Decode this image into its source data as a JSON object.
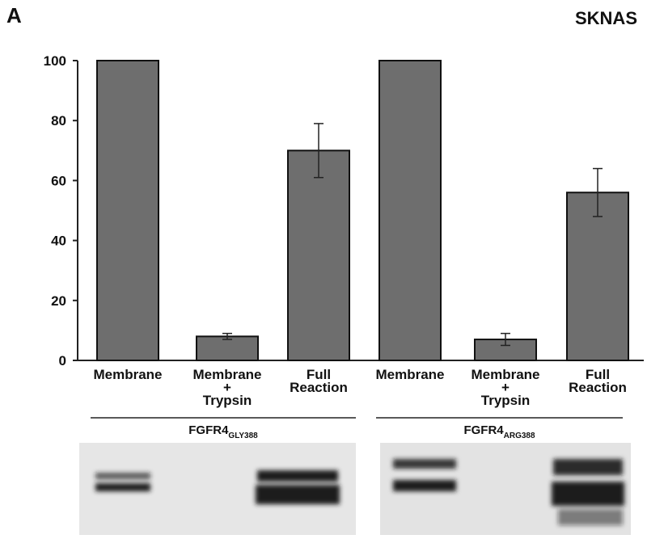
{
  "panel_label": "A",
  "chart_data": {
    "type": "bar",
    "title": "SKNAS",
    "categories": [
      "Membrane",
      "Membrane\n+\nTrypsin",
      "Full\nReaction",
      "Membrane",
      "Membrane\n+\nTrypsin",
      "Full\nReaction"
    ],
    "values": [
      100,
      8,
      70,
      100,
      7,
      56
    ],
    "errors": [
      null,
      1,
      9,
      null,
      2,
      8
    ],
    "color": "#6e6e6e",
    "ylim": [
      0,
      100
    ],
    "yticks": [
      0,
      20,
      40,
      60,
      80,
      100
    ],
    "groups": [
      {
        "name": "FGFR4",
        "subscript": "GLY388"
      },
      {
        "name": "FGFR4",
        "subscript": "ARG388"
      }
    ]
  }
}
